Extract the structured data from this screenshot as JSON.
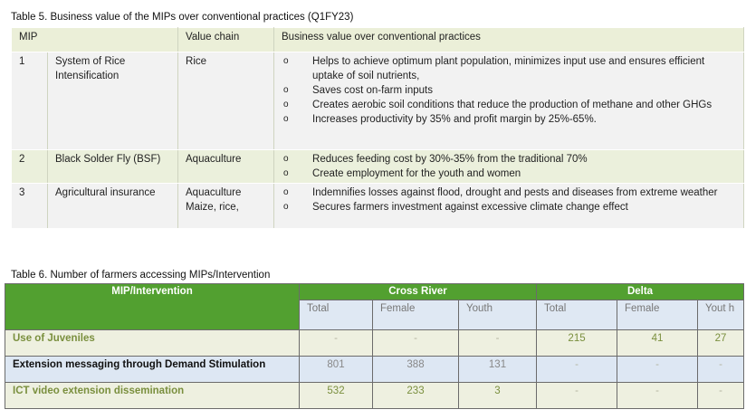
{
  "table5": {
    "caption": "Table 5. Business value of the MIPs over conventional practices (Q1FY23)",
    "headers": {
      "mip": "MIP",
      "value_chain": "Value chain",
      "business_value": "Business value over conventional practices"
    },
    "rows": [
      {
        "num": "1",
        "name": "System of Rice Intensification",
        "value_chain": "Rice",
        "bullets": [
          "Helps to achieve optimum plant population, minimizes input use and ensures efficient uptake of soil nutrients,",
          "Saves cost on-farm inputs",
          "Creates aerobic soil conditions that reduce the production of methane and other GHGs",
          "Increases productivity by 35% and profit margin by 25%-65%."
        ]
      },
      {
        "num": "2",
        "name": "Black Solder Fly (BSF)",
        "value_chain": "Aquaculture",
        "bullets": [
          "Reduces feeding cost by 30%-35% from the traditional 70%",
          "Create employment for the youth and women"
        ]
      },
      {
        "num": "3",
        "name": "Agricultural insurance",
        "value_chain": "Aquaculture Maize, rice,",
        "bullets": [
          "Indemnifies losses against flood, drought and pests and diseases from extreme weather",
          "Secures farmers investment against excessive climate change effect"
        ]
      }
    ]
  },
  "table6": {
    "caption": "Table 6. Number of farmers accessing MIPs/Intervention",
    "headers": {
      "intervention": "MIP/Intervention",
      "cross_river": "Cross River",
      "delta": "Delta"
    },
    "subheaders": [
      "Total",
      "Female",
      "Youth",
      "Total",
      "Female",
      "Yout h"
    ],
    "rows": [
      {
        "name": "Use of Juveniles",
        "values": [
          "-",
          "-",
          "-",
          "215",
          "41",
          "27"
        ]
      },
      {
        "name": "Extension messaging through Demand Stimulation",
        "values": [
          "801",
          "388",
          "131",
          "-",
          "-",
          "-"
        ]
      },
      {
        "name": "ICT video extension dissemination",
        "values": [
          "532",
          "233",
          "3",
          "-",
          "-",
          "-"
        ]
      }
    ]
  },
  "colors": {
    "header_green": "#52a030",
    "light_blue": "#dfe8f3",
    "beige": "#eef0e0",
    "text_olive": "#7a8f3e"
  }
}
